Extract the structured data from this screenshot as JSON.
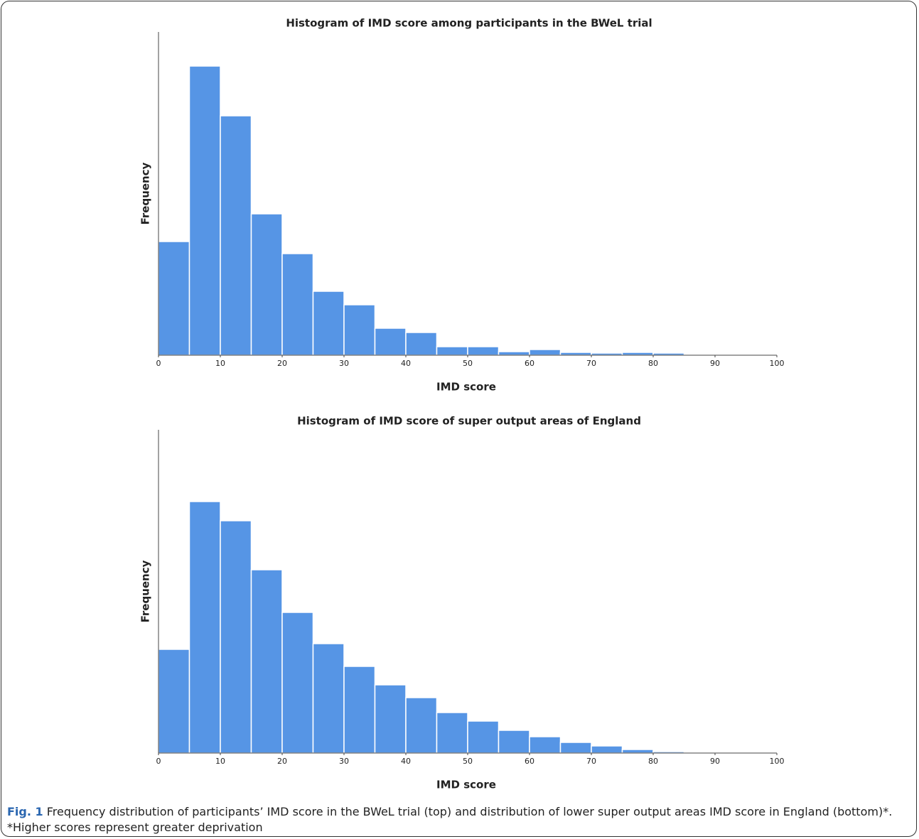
{
  "chart_data": [
    {
      "type": "histogram",
      "title": "Histogram of IMD score among participants in the BWeL trial",
      "x_label": "IMD score",
      "y_label": "Frequency",
      "bins": [
        0,
        5,
        10,
        15,
        20,
        25,
        30,
        35,
        40,
        45,
        50,
        55,
        60,
        65,
        70,
        75,
        80,
        85,
        90,
        95,
        100
      ],
      "counts": [
        160,
        407,
        337,
        199,
        143,
        90,
        71,
        38,
        32,
        12,
        12,
        5,
        8,
        4,
        3,
        4,
        3,
        0,
        0,
        0
      ],
      "color": "#5695e5",
      "xlim": [
        0,
        100
      ],
      "xticks": [
        0,
        10,
        20,
        30,
        40,
        50,
        60,
        70,
        80,
        90,
        100
      ],
      "ylim": [
        0,
        455
      ]
    },
    {
      "type": "histogram",
      "title": "Histogram of IMD score of super output areas of England",
      "x_label": "IMD score",
      "y_label": "Frequency",
      "bins": [
        0,
        5,
        10,
        15,
        20,
        25,
        30,
        35,
        40,
        45,
        50,
        55,
        60,
        65,
        70,
        75,
        80,
        85,
        90,
        95,
        100
      ],
      "counts": [
        146,
        354,
        327,
        258,
        198,
        154,
        122,
        96,
        78,
        57,
        45,
        32,
        23,
        15,
        10,
        5,
        2,
        0,
        0,
        0
      ],
      "color": "#5695e5",
      "xlim": [
        0,
        100
      ],
      "xticks": [
        0,
        10,
        20,
        30,
        40,
        50,
        60,
        70,
        80,
        90,
        100
      ],
      "ylim": [
        0,
        455
      ]
    }
  ],
  "caption": {
    "label": "Fig. 1",
    "text": "Frequency distribution of participants’ IMD score in the BWeL trial (top) and distribution of lower super output areas IMD score in England (bottom)*. *Higher scores represent greater deprivation"
  }
}
